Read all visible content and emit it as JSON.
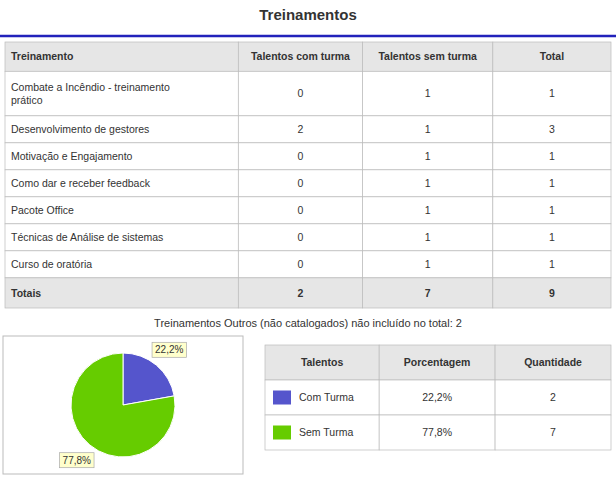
{
  "chart_data": [
    {
      "type": "table",
      "title": "Treinamentos",
      "columns": [
        "Treinamento",
        "Talentos com turma",
        "Talentos sem turma",
        "Total"
      ],
      "rows": [
        [
          "Combate a Incêndio - treinamento\nprático",
          0,
          1,
          1
        ],
        [
          "Desenvolvimento de gestores",
          2,
          1,
          3
        ],
        [
          "Motivação e Engajamento",
          0,
          1,
          1
        ],
        [
          "Como dar e receber feedback",
          0,
          1,
          1
        ],
        [
          "Pacote Office",
          0,
          1,
          1
        ],
        [
          "Técnicas de Análise de sistemas",
          0,
          1,
          1
        ],
        [
          "Curso de oratória",
          0,
          1,
          1
        ]
      ],
      "totals": [
        "Totais",
        2,
        7,
        9
      ],
      "note": "Treinamentos Outros (não catalogados) não incluído no total: 2"
    },
    {
      "type": "pie",
      "categories": [
        "Com Turma",
        "Sem Turma"
      ],
      "values": [
        22.2,
        77.8
      ],
      "value_labels": [
        "22,2%",
        "77,8%"
      ],
      "colors": [
        "#5555cc",
        "#66cc00"
      ],
      "data_labels": true,
      "legend_headers": [
        "Talentos",
        "Porcentagem",
        "Quantidade"
      ],
      "quantities": [
        2,
        7
      ]
    }
  ]
}
